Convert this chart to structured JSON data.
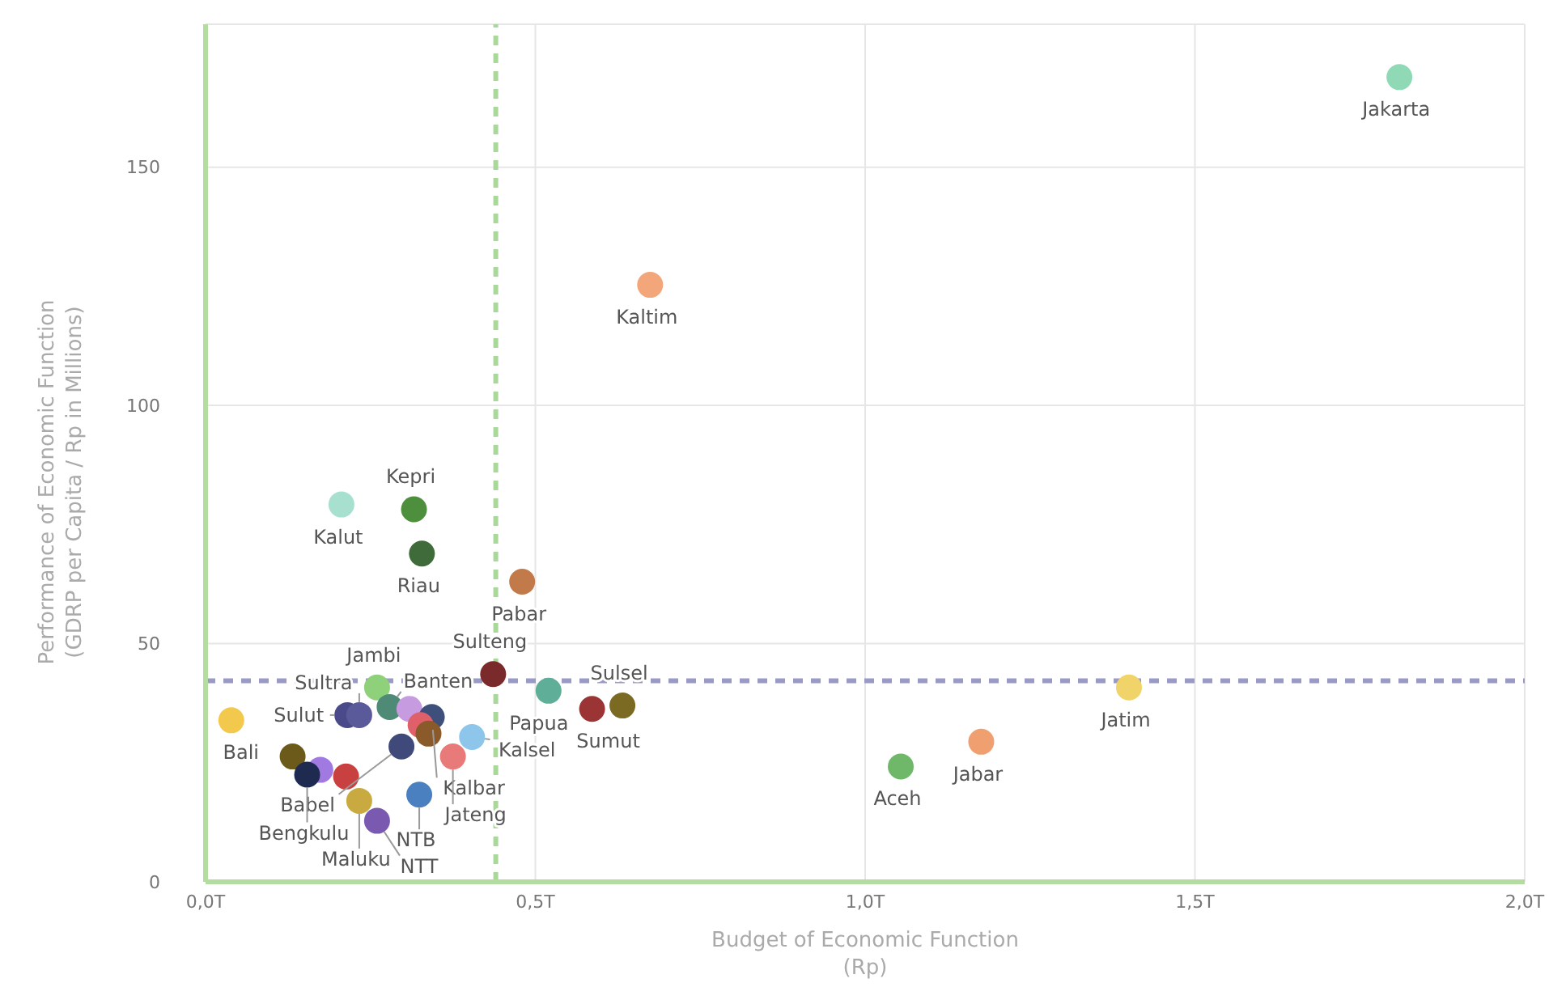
{
  "chart_data": {
    "type": "scatter",
    "xlabel": "Budget of Economic Function\n(Rp)",
    "ylabel": "Performance of Economic Function\n(GDRP per Capita / Rp in Millions)",
    "xlim": [
      0,
      2
    ],
    "xticks": [
      {
        "value": 0,
        "label": "0,0T"
      },
      {
        "value": 0.5,
        "label": "0,5T"
      },
      {
        "value": 1,
        "label": "1,0T"
      },
      {
        "value": 1.5,
        "label": "1,5T"
      },
      {
        "value": 2,
        "label": "2,0T"
      }
    ],
    "ylim": [
      0,
      180
    ],
    "yticks": [
      0,
      50,
      100,
      150
    ],
    "grid": true,
    "legend": false,
    "marker": "circle",
    "ref_lines": [
      {
        "axis": "x",
        "value": 0.44,
        "color": "#a9d89a",
        "line_style": "dashed"
      },
      {
        "axis": "y",
        "value": 42.2,
        "color": "#9a9ac8",
        "line_style": "dashed"
      }
    ],
    "series": [
      {
        "name": "Jakarta",
        "color": "#8fd9b6",
        "x": [
          1.81
        ],
        "values": [
          168.9
        ]
      },
      {
        "name": "Kaltim",
        "color": "#f2a67a",
        "x": [
          0.674
        ],
        "values": [
          125.3
        ]
      },
      {
        "name": "Kalut",
        "color": "#a8e0cf",
        "x": [
          0.206
        ],
        "values": [
          79.2
        ]
      },
      {
        "name": "Kepri",
        "color": "#4e8f3e",
        "x": [
          0.316
        ],
        "values": [
          78.2
        ]
      },
      {
        "name": "Riau",
        "color": "#3f6b3a",
        "x": [
          0.328
        ],
        "values": [
          68.9
        ]
      },
      {
        "name": "Pabar",
        "color": "#c27a4a",
        "x": [
          0.48
        ],
        "values": [
          63
        ]
      },
      {
        "name": "Sulteng",
        "color": "#7a2a2a",
        "x": [
          0.436
        ],
        "values": [
          43.6
        ]
      },
      {
        "name": "Papua",
        "color": "#5fae98",
        "x": [
          0.52
        ],
        "values": [
          40.1
        ]
      },
      {
        "name": "Sumut",
        "color": "#9b3535",
        "x": [
          0.586
        ],
        "values": [
          36.3
        ]
      },
      {
        "name": "Sulsel",
        "color": "#7a6a22",
        "x": [
          0.632
        ],
        "values": [
          37
        ]
      },
      {
        "name": "Jatim",
        "color": "#f0d46a",
        "x": [
          1.4
        ],
        "values": [
          40.8
        ]
      },
      {
        "name": "Jabar",
        "color": "#f0a070",
        "x": [
          1.176
        ],
        "values": [
          29.4
        ]
      },
      {
        "name": "Aceh",
        "color": "#6fb86a",
        "x": [
          1.054
        ],
        "values": [
          24.2
        ]
      },
      {
        "name": "Bali",
        "color": "#f2c94c",
        "x": [
          0.039
        ],
        "values": [
          33.9
        ]
      },
      {
        "name": "Jambi",
        "color": "#8fd07a",
        "x": [
          0.26
        ],
        "values": [
          40.8
        ]
      },
      {
        "name": "Banten",
        "color": "#4f8a76",
        "x": [
          0.279
        ],
        "values": [
          36.7
        ]
      },
      {
        "name": "Sulut",
        "color": "#4a4a8a",
        "x": [
          0.215
        ],
        "values": [
          35
        ]
      },
      {
        "name": "Sultra",
        "color": "#5a5a9a",
        "x": [
          0.233
        ],
        "values": [
          35
        ]
      },
      {
        "color": "#c69be0",
        "x": [
          0.309
        ],
        "values": [
          36.3
        ]
      },
      {
        "name": "Kalbar",
        "color": "#3d4f7a",
        "x": [
          0.343
        ],
        "values": [
          34.6
        ]
      },
      {
        "color": "#e0606a",
        "x": [
          0.326
        ],
        "values": [
          32.9
        ]
      },
      {
        "color": "#8a5a2a",
        "x": [
          0.338
        ],
        "values": [
          31.1
        ]
      },
      {
        "name": "Kalsel",
        "color": "#8ec5ea",
        "x": [
          0.404
        ],
        "values": [
          30.4
        ]
      },
      {
        "name": "Jateng",
        "color": "#e87a7a",
        "x": [
          0.375
        ],
        "values": [
          26.3
        ]
      },
      {
        "name": "Babel",
        "color": "#3f4a7a",
        "x": [
          0.297
        ],
        "values": [
          28.4
        ]
      },
      {
        "color": "#6b5a1a",
        "x": [
          0.132
        ],
        "values": [
          26.3
        ]
      },
      {
        "color": "#a07ae0",
        "x": [
          0.174
        ],
        "values": [
          23.5
        ]
      },
      {
        "name": "Bengkulu",
        "color": "#1f2a50",
        "x": [
          0.154
        ],
        "values": [
          22.5
        ]
      },
      {
        "color": "#c84040",
        "x": [
          0.213
        ],
        "values": [
          22.1
        ]
      },
      {
        "name": "Maluku",
        "color": "#c8aa40",
        "x": [
          0.233
        ],
        "values": [
          17
        ]
      },
      {
        "name": "NTB",
        "color": "#4a7fc0",
        "x": [
          0.324
        ],
        "values": [
          18.3
        ]
      },
      {
        "name": "NTT",
        "color": "#7a5ab0",
        "x": [
          0.26
        ],
        "values": [
          12.8
        ]
      }
    ]
  }
}
